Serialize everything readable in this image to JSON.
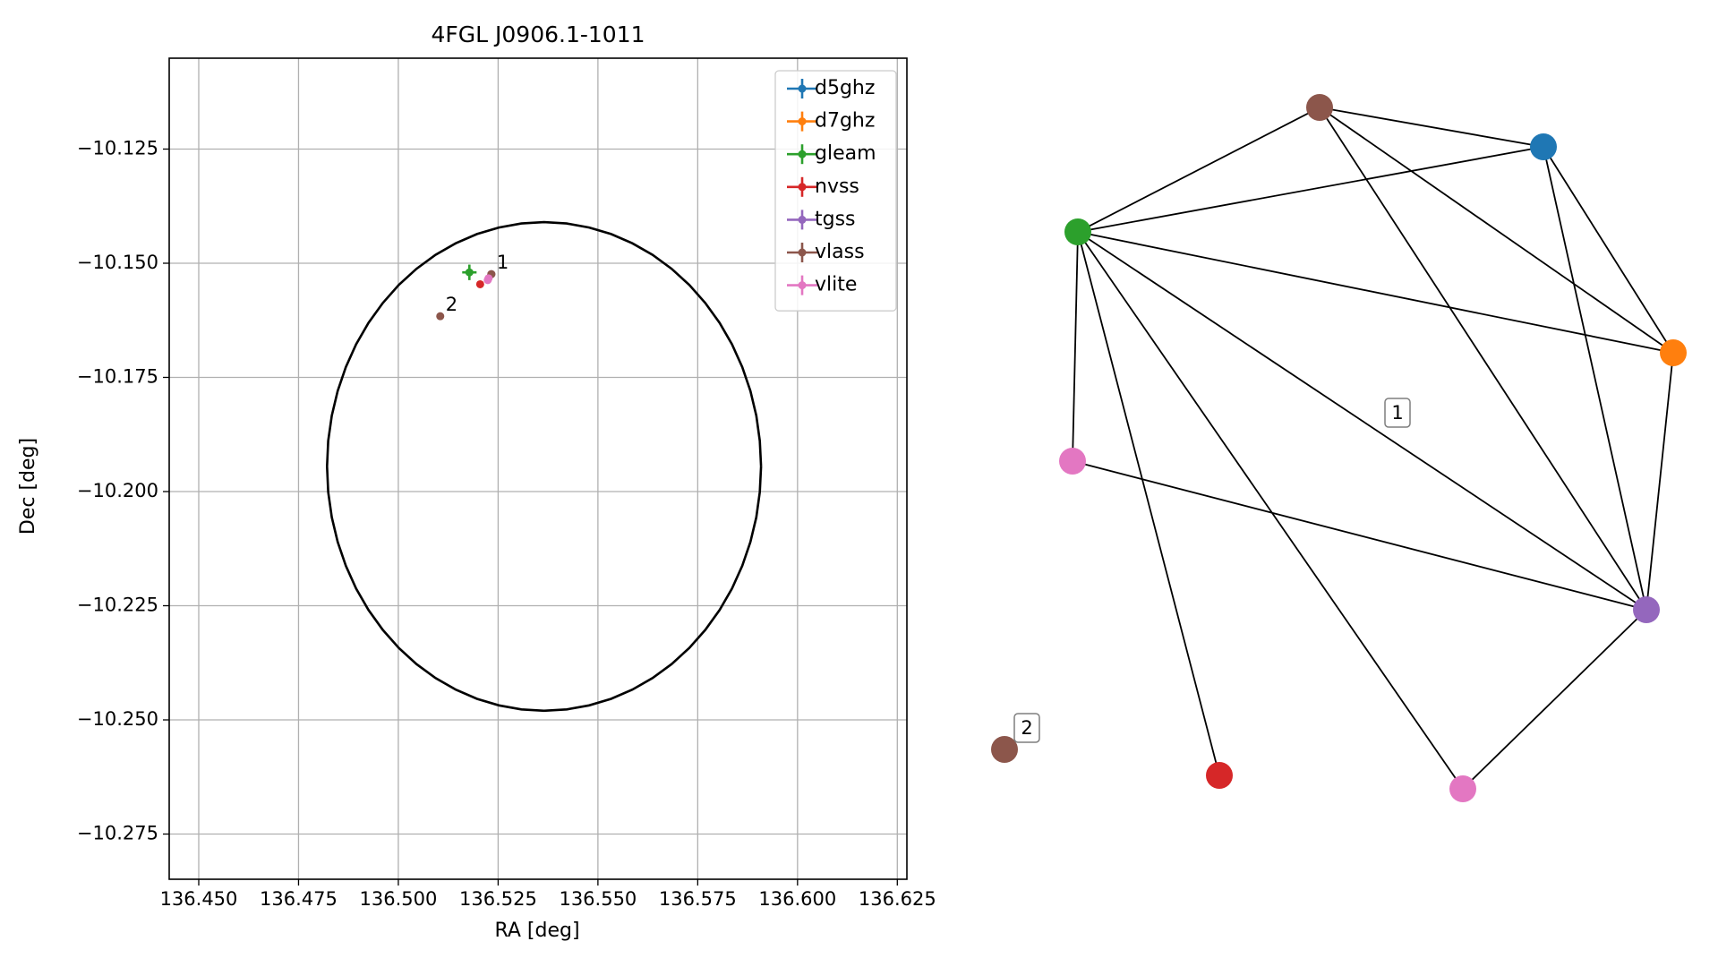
{
  "chart_data": [
    {
      "type": "scatter",
      "title": "4FGL J0906.1-1011",
      "xlabel": "RA [deg]",
      "ylabel": "Dec [deg]",
      "xlim": [
        136.4426,
        136.6274
      ],
      "ylim": [
        -10.2849,
        -10.1051
      ],
      "xticks": [
        136.45,
        136.475,
        136.5,
        136.525,
        136.55,
        136.575,
        136.6,
        136.625
      ],
      "xtick_labels": [
        "136.450",
        "136.475",
        "136.500",
        "136.525",
        "136.550",
        "136.575",
        "136.600",
        "136.625"
      ],
      "yticks": [
        -10.125,
        -10.15,
        -10.175,
        -10.2,
        -10.225,
        -10.25,
        -10.275
      ],
      "ytick_labels": [
        "−10.125",
        "−10.150",
        "−10.175",
        "−10.200",
        "−10.225",
        "−10.250",
        "−10.275"
      ],
      "grid": true,
      "legend_position": "upper right",
      "circle": {
        "center": [
          136.5365,
          -10.1945
        ],
        "radius_deg": 0.0535,
        "color": "#000000"
      },
      "series": [
        {
          "name": "d5ghz",
          "color": "#1f77b4",
          "points": [
            {
              "x": 136.5233,
              "y": -10.1524,
              "xerr": 0,
              "yerr": 0
            }
          ]
        },
        {
          "name": "d7ghz",
          "color": "#ff7f0e",
          "points": [
            {
              "x": 136.5233,
              "y": -10.1524,
              "xerr": 0,
              "yerr": 0
            }
          ]
        },
        {
          "name": "gleam",
          "color": "#2ca02c",
          "points": [
            {
              "x": 136.5178,
              "y": -10.152,
              "xerr": 0.0018,
              "yerr": 0.0017
            }
          ]
        },
        {
          "name": "nvss",
          "color": "#d62728",
          "points": [
            {
              "x": 136.5205,
              "y": -10.1546,
              "xerr": 0,
              "yerr": 0
            }
          ]
        },
        {
          "name": "tgss",
          "color": "#9467bd",
          "points": [
            {
              "x": 136.5233,
              "y": -10.1524,
              "xerr": 0,
              "yerr": 0
            }
          ]
        },
        {
          "name": "vlass",
          "color": "#8c564b",
          "points": [
            {
              "x": 136.5233,
              "y": -10.1524,
              "xerr": 0,
              "yerr": 0
            },
            {
              "x": 136.5105,
              "y": -10.1616,
              "xerr": 0,
              "yerr": 0
            }
          ]
        },
        {
          "name": "vlite",
          "color": "#e377c2",
          "points": [
            {
              "x": 136.5226,
              "y": -10.1533,
              "xerr": 0.0004,
              "yerr": 0.0007
            },
            {
              "x": 136.5224,
              "y": -10.1537,
              "xerr": 0.0004,
              "yerr": 0.0007
            }
          ]
        }
      ],
      "annotations": [
        {
          "text": "1",
          "x": 136.5233,
          "y": -10.1524
        },
        {
          "text": "2",
          "x": 136.5105,
          "y": -10.1616
        }
      ]
    },
    {
      "type": "network",
      "nodes": [
        {
          "id": "vlass_1",
          "color": "#8c564b"
        },
        {
          "id": "d5ghz",
          "color": "#1f77b4"
        },
        {
          "id": "gleam",
          "color": "#2ca02c"
        },
        {
          "id": "d7ghz",
          "color": "#ff7f0e"
        },
        {
          "id": "vlite_1",
          "color": "#e377c2"
        },
        {
          "id": "tgss",
          "color": "#9467bd"
        },
        {
          "id": "vlass_2",
          "color": "#8c564b"
        },
        {
          "id": "nvss",
          "color": "#d62728"
        },
        {
          "id": "vlite_2",
          "color": "#e377c2"
        }
      ],
      "edges": [
        [
          "vlass_1",
          "d5ghz"
        ],
        [
          "vlass_1",
          "gleam"
        ],
        [
          "vlass_1",
          "d7ghz"
        ],
        [
          "vlass_1",
          "tgss"
        ],
        [
          "d5ghz",
          "gleam"
        ],
        [
          "d5ghz",
          "d7ghz"
        ],
        [
          "d5ghz",
          "tgss"
        ],
        [
          "gleam",
          "d7ghz"
        ],
        [
          "gleam",
          "vlite_1"
        ],
        [
          "gleam",
          "tgss"
        ],
        [
          "gleam",
          "nvss"
        ],
        [
          "gleam",
          "vlite_2"
        ],
        [
          "d7ghz",
          "tgss"
        ],
        [
          "vlite_1",
          "tgss"
        ],
        [
          "tgss",
          "vlite_2"
        ]
      ],
      "group_labels": [
        "1",
        "2"
      ]
    }
  ]
}
